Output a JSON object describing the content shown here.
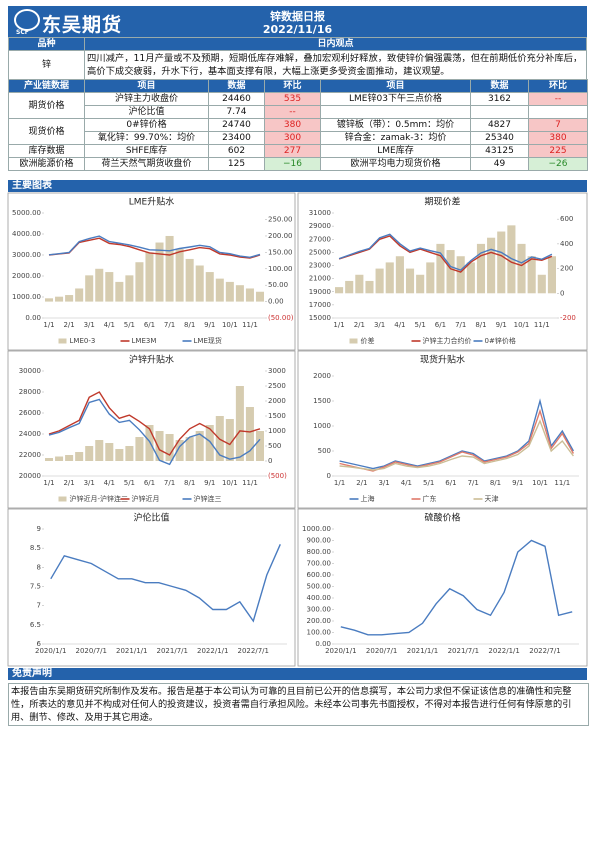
{
  "header": {
    "logo": "东吴期货",
    "logo_sub": "SCF",
    "title": "锌数据日报",
    "date": "2022/11/16"
  },
  "opinion": {
    "header": [
      "品种",
      "日内观点"
    ],
    "variety": "锌",
    "text": "四川减产，11月产量或不及预期，短期低库存难解，叠加宏观利好释放，致使锌价偏强震荡，但在前期低价充分补库后，高价下成交疲弱，升水下行，基本面支撑有限，大幅上涨更多受资金面推动，建议观望。"
  },
  "data_table": {
    "header": [
      "产业链数据",
      "项目",
      "数据",
      "环比",
      "项目",
      "数据",
      "环比"
    ],
    "groups": [
      {
        "name": "期货价格",
        "rows": [
          {
            "left": [
              "沪锌主力收盘价",
              "24460",
              "535"
            ],
            "right": [
              "LME锌03下午三点价格",
              "3162",
              "--"
            ]
          },
          {
            "left": [
              "沪伦比值",
              "7.74",
              "--"
            ]
          }
        ]
      },
      {
        "name": "现货价格",
        "rows": [
          {
            "left": [
              "0#锌价格",
              "24740",
              "380"
            ],
            "right": [
              "镀锌板（带）：0.5mm：均价",
              "4827",
              "7"
            ]
          },
          {
            "left": [
              "氧化锌：99.70%：均价",
              "23400",
              "300"
            ],
            "right": [
              "锌合金：zamak-3：均价",
              "25340",
              "380"
            ]
          }
        ]
      },
      {
        "name": "库存数据",
        "rows": [
          {
            "left": [
              "SHFE库存",
              "602",
              "277"
            ],
            "right": [
              "LME库存",
              "43125",
              "225"
            ]
          }
        ]
      },
      {
        "name": "欧洲能源价格",
        "rows": [
          {
            "left": [
              "荷兰天然气期货收盘价",
              "125",
              "−16"
            ],
            "right": [
              "欧洲平均电力现货价格",
              "49",
              "−26"
            ]
          }
        ]
      }
    ]
  },
  "charts_title": "主要图表",
  "chart_data": [
    {
      "type": "line",
      "title": "LME升贴水",
      "categories": [
        "1/1",
        null,
        "2/1",
        null,
        "3/1",
        null,
        "4/1",
        null,
        "5/1",
        null,
        "6/1",
        null,
        "7/1",
        null,
        "8/1",
        null,
        "9/1",
        null,
        "10/1",
        null,
        "11/1",
        null
      ],
      "ylim": [
        0,
        5000
      ],
      "yticks": [
        {
          "value": 0,
          "label": "0.00"
        },
        {
          "value": 1000,
          "label": "1000.00"
        },
        {
          "value": 2000,
          "label": "2000.00"
        },
        {
          "value": 3000,
          "label": "3000.00"
        },
        {
          "value": 4000,
          "label": "4000.00"
        },
        {
          "value": 5000,
          "label": "5000.00"
        }
      ],
      "y2lim": [
        -50,
        270
      ],
      "y2ticks": [
        {
          "value": -50,
          "label": "(50.00)"
        },
        {
          "value": 0,
          "label": "0.00"
        },
        {
          "value": 50,
          "label": "50.00"
        },
        {
          "value": 100,
          "label": "100.00"
        },
        {
          "value": 150,
          "label": "150.00"
        },
        {
          "value": 200,
          "label": "200.00"
        },
        {
          "value": 250,
          "label": "250.00"
        }
      ],
      "series": [
        {
          "name": "LME0-3",
          "type": "bar",
          "axis": "y2",
          "color": "#d6ccb0",
          "values": [
            10,
            15,
            20,
            40,
            80,
            100,
            90,
            60,
            80,
            120,
            150,
            180,
            200,
            160,
            130,
            110,
            90,
            70,
            60,
            50,
            40,
            30
          ]
        },
        {
          "name": "LME3M",
          "type": "line",
          "color": "#c0392b",
          "values": [
            3000,
            3050,
            3100,
            3600,
            3700,
            3800,
            3550,
            3500,
            3400,
            3250,
            3100,
            3050,
            3000,
            3150,
            3250,
            3350,
            3300,
            3050,
            3000,
            2900,
            2850,
            3000
          ]
        },
        {
          "name": "LME现货",
          "type": "line",
          "color": "#4a7cc0",
          "values": [
            3010,
            3060,
            3120,
            3640,
            3780,
            3900,
            3640,
            3560,
            3480,
            3370,
            3250,
            3230,
            3200,
            3310,
            3380,
            3460,
            3390,
            3120,
            3060,
            2950,
            2890,
            3030
          ]
        }
      ]
    },
    {
      "type": "line",
      "title": "期现价差",
      "categories": [
        "1/1",
        null,
        "2/1",
        null,
        "3/1",
        null,
        "4/1",
        null,
        "5/1",
        null,
        "6/1",
        null,
        "7/1",
        null,
        "8/1",
        null,
        "9/1",
        null,
        "10/1",
        null,
        "11/1",
        null
      ],
      "ylim": [
        15000,
        31000
      ],
      "yticks": [
        15000,
        17000,
        19000,
        21000,
        23000,
        25000,
        27000,
        29000,
        31000
      ],
      "y2lim": [
        -200,
        650
      ],
      "y2ticks": [
        -200,
        0,
        200,
        400,
        600
      ],
      "series": [
        {
          "name": "价差",
          "type": "bar",
          "axis": "y2",
          "color": "#d6ccb0",
          "values": [
            50,
            100,
            150,
            100,
            200,
            250,
            300,
            200,
            150,
            250,
            400,
            350,
            300,
            250,
            400,
            450,
            500,
            550,
            400,
            300,
            150,
            300
          ]
        },
        {
          "name": "沪锌主力合约价",
          "type": "line",
          "color": "#c0392b",
          "values": [
            24000,
            24500,
            25000,
            25500,
            27000,
            27500,
            26000,
            25000,
            25500,
            25000,
            24500,
            22500,
            22000,
            23500,
            24500,
            25000,
            24500,
            23500,
            23000,
            24000,
            23800,
            24400
          ]
        },
        {
          "name": "0#锌价格",
          "type": "line",
          "color": "#4a7cc0",
          "values": [
            24050,
            24600,
            25150,
            25600,
            27200,
            27750,
            26300,
            25200,
            25650,
            25250,
            24900,
            22850,
            22300,
            23750,
            24900,
            25450,
            25000,
            24050,
            23400,
            24300,
            23950,
            24700
          ]
        }
      ]
    },
    {
      "type": "line",
      "title": "沪锌升贴水",
      "categories": [
        "1/1",
        null,
        "2/1",
        null,
        "3/1",
        null,
        "4/1",
        null,
        "5/1",
        null,
        "6/1",
        null,
        "7/1",
        null,
        "8/1",
        null,
        "9/1",
        null,
        "10/1",
        null,
        "11/1",
        null
      ],
      "ylim": [
        20000,
        30000
      ],
      "yticks": [
        20000,
        22000,
        24000,
        26000,
        28000,
        30000
      ],
      "y2lim": [
        -500,
        3000
      ],
      "y2ticks": [
        {
          "value": -500,
          "label": "(500)"
        },
        0,
        500,
        1000,
        1500,
        2000,
        2500,
        3000
      ],
      "series": [
        {
          "name": "沪锌近月-沪锌连三",
          "type": "bar",
          "axis": "y2",
          "color": "#d6ccb0",
          "values": [
            100,
            150,
            200,
            300,
            500,
            700,
            600,
            400,
            500,
            800,
            1200,
            1000,
            900,
            700,
            800,
            1000,
            1200,
            1500,
            1400,
            2500,
            1800,
            1000
          ]
        },
        {
          "name": "沪锌近月",
          "type": "line",
          "color": "#c0392b",
          "values": [
            24000,
            24300,
            24800,
            25300,
            27500,
            28000,
            26500,
            25500,
            25800,
            25200,
            24500,
            22500,
            22000,
            23500,
            24500,
            25000,
            24500,
            23500,
            23000,
            24300,
            24200,
            24500
          ]
        },
        {
          "name": "沪锌连三",
          "type": "line",
          "color": "#4a7cc0",
          "values": [
            23900,
            24150,
            24600,
            25000,
            27000,
            27300,
            25900,
            25100,
            25300,
            24400,
            23300,
            21500,
            21100,
            22800,
            23700,
            24000,
            23300,
            22000,
            21600,
            21800,
            22400,
            23500
          ]
        }
      ]
    },
    {
      "type": "line",
      "title": "现货升贴水",
      "categories": [
        "1/1",
        null,
        "2/1",
        null,
        "3/1",
        null,
        "4/1",
        null,
        "5/1",
        null,
        "6/1",
        null,
        "7/1",
        null,
        "8/1",
        null,
        "9/1",
        null,
        "10/1",
        null,
        "11/1",
        null
      ],
      "ylim": [
        0,
        2100
      ],
      "yticks": [
        0,
        500,
        1000,
        1500,
        2000
      ],
      "series": [
        {
          "name": "上海",
          "type": "line",
          "color": "#4a7cc0",
          "values": [
            300,
            250,
            200,
            150,
            200,
            300,
            250,
            200,
            250,
            300,
            400,
            500,
            450,
            300,
            350,
            400,
            500,
            700,
            1500,
            600,
            900,
            500
          ]
        },
        {
          "name": "广东",
          "type": "line",
          "color": "#e07a6a",
          "values": [
            250,
            200,
            150,
            100,
            180,
            280,
            230,
            180,
            230,
            280,
            380,
            480,
            420,
            280,
            330,
            380,
            480,
            650,
            1300,
            550,
            850,
            450
          ]
        },
        {
          "name": "天津",
          "type": "line",
          "color": "#cbbd95",
          "values": [
            200,
            180,
            150,
            120,
            150,
            250,
            200,
            170,
            200,
            250,
            330,
            400,
            380,
            250,
            300,
            350,
            430,
            600,
            1100,
            500,
            700,
            400
          ]
        }
      ]
    },
    {
      "type": "line",
      "title": "沪伦比值",
      "categories": [
        "2020/1/1",
        null,
        null,
        "2020/7/1",
        null,
        null,
        "2021/1/1",
        null,
        null,
        "2021/7/1",
        null,
        null,
        "2022/1/1",
        null,
        null,
        "2022/7/1",
        null,
        null
      ],
      "ylim": [
        6,
        9
      ],
      "yticks": [
        6,
        6.5,
        7,
        7.5,
        8,
        8.5,
        9
      ],
      "series": [
        {
          "name": "沪伦比值",
          "type": "line",
          "color": "#4a7cc0",
          "values": [
            7.7,
            8.3,
            8.2,
            8.1,
            7.9,
            7.7,
            7.7,
            7.6,
            7.6,
            7.5,
            7.4,
            7.2,
            6.9,
            6.9,
            7.1,
            6.6,
            7.8,
            8.6
          ]
        }
      ]
    },
    {
      "type": "line",
      "title": "硫酸价格",
      "categories": [
        "2020/1/1",
        null,
        null,
        "2020/7/1",
        null,
        null,
        "2021/1/1",
        null,
        null,
        "2021/7/1",
        null,
        null,
        "2022/1/1",
        null,
        null,
        "2022/7/1",
        null,
        null
      ],
      "ylim": [
        0,
        1000
      ],
      "yticks": [
        {
          "value": 0,
          "label": "0.00"
        },
        {
          "value": 100,
          "label": "100.00"
        },
        {
          "value": 200,
          "label": "200.00"
        },
        {
          "value": 300,
          "label": "300.00"
        },
        {
          "value": 400,
          "label": "400.00"
        },
        {
          "value": 500,
          "label": "500.00"
        },
        {
          "value": 600,
          "label": "600.00"
        },
        {
          "value": 700,
          "label": "700.00"
        },
        {
          "value": 800,
          "label": "800.00"
        },
        {
          "value": 900,
          "label": "900.00"
        },
        {
          "value": 1000,
          "label": "1000.00"
        }
      ],
      "series": [
        {
          "name": "硫酸价格",
          "type": "line",
          "color": "#4a7cc0",
          "values": [
            150,
            120,
            80,
            80,
            90,
            100,
            180,
            350,
            480,
            420,
            300,
            250,
            450,
            800,
            900,
            850,
            250,
            280
          ]
        }
      ]
    }
  ],
  "disclaimer": {
    "title": "免责声明",
    "text": "本报告由东吴期货研究所制作及发布。报告是基于本公司认为可靠的且目前已公开的信息撰写，本公司力求但不保证该信息的准确性和完整性，所表达的意见并不构成对任何人的投资建议，投资者需自行承担风险。未经本公司事先书面授权，不得对本报告进行任何有悖原意的引用、删节、修改、及用于其它用途。"
  }
}
